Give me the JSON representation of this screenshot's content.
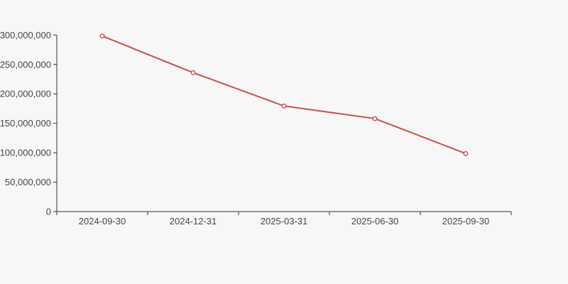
{
  "page": {
    "background": "#f7f7f7"
  },
  "chart_data": {
    "type": "line",
    "title": "",
    "xlabel": "",
    "ylabel": "",
    "categories": [
      "2024-09-30",
      "2024-12-31",
      "2025-03-31",
      "2025-06-30",
      "2025-09-30"
    ],
    "values": [
      298300000,
      236000000,
      179400000,
      158000000,
      98600000
    ],
    "ylim": [
      0,
      300000000
    ],
    "ytick_interval": 50000000,
    "ytick_labels": [
      "0",
      "50,000,000",
      "100,000,000",
      "150,000,000",
      "200,000,000",
      "250,000,000",
      "300,000,000"
    ],
    "grid": false,
    "legend_position": "none",
    "line_color": "#c5524e",
    "marker": "hollow-circle",
    "marker_fill": "#ffffff",
    "axis_color": "#333333",
    "label_color": "#464646"
  }
}
